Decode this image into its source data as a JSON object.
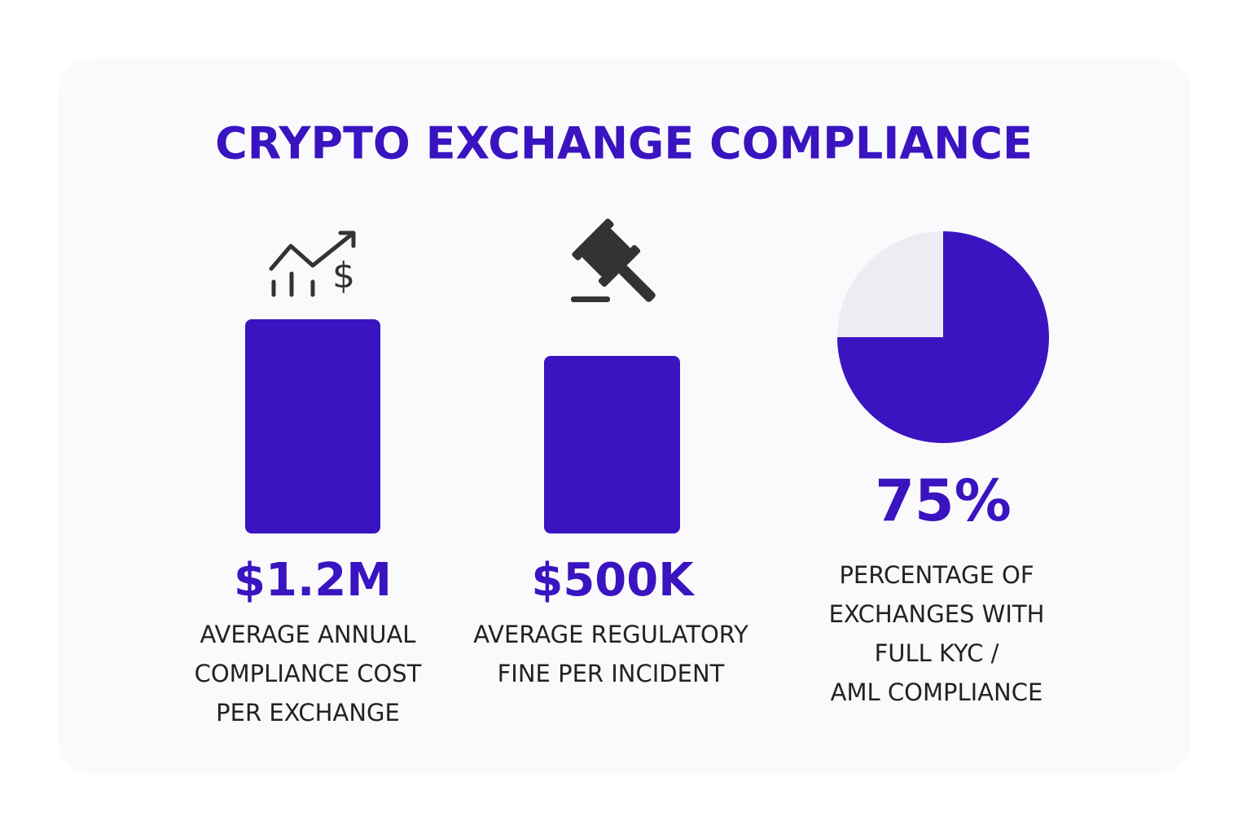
{
  "title": "CRYPTO EXCHANGE COMPLIANCE",
  "cards": [
    {
      "value_label": "$1.2M",
      "label": [
        "AVERAGE ANNUAL",
        "COMPLIANCE COST",
        "PER EXCHANGE"
      ]
    },
    {
      "value_label": "$500K",
      "label": [
        "AVERAGE REGULATORY",
        "FINE PER INCIDENT"
      ]
    },
    {
      "value": 75,
      "value_label": "75%",
      "color": "#3a14c0",
      "rest_color": "#ececf2",
      "label": [
        "PERCENTAGE OF",
        "EXCHANGES WITH",
        "FULL KYC /",
        "AML COMPLIANCE"
      ]
    }
  ]
}
